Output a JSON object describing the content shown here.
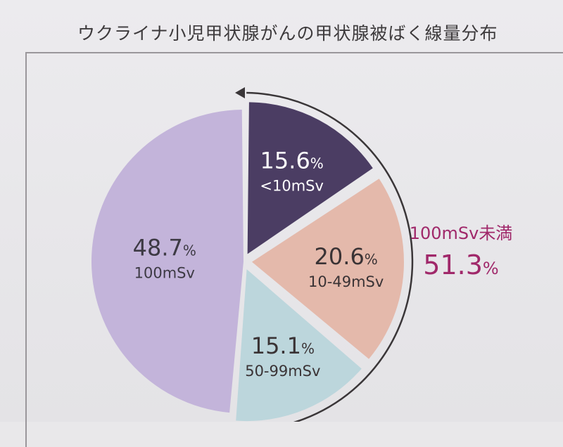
{
  "title": "ウクライナ小児甲状腺がんの甲状腺被ばく線量分布",
  "chart_data": {
    "type": "pie",
    "title": "ウクライナ小児甲状腺がんの甲状腺被ばく線量分布",
    "slices": [
      {
        "label": "<10mSv",
        "value": 15.6,
        "value_text": "15.6",
        "color": "#4b3d63",
        "text_color": "#ffffff",
        "exploded": true
      },
      {
        "label": "10-49mSv",
        "value": 20.6,
        "value_text": "20.6",
        "color": "#e4b9ab",
        "text_color": "#3a3335",
        "exploded": true
      },
      {
        "label": "50-99mSv",
        "value": 15.1,
        "value_text": "15.1",
        "color": "#bcd6dc",
        "text_color": "#3a3335",
        "exploded": true
      },
      {
        "label": "100mSv",
        "value": 48.7,
        "value_text": "48.7",
        "color": "#c3b4da",
        "text_color": "#3d3a44",
        "exploded": false
      }
    ],
    "percent_symbol": "%",
    "annotation": {
      "label": "100mSv未満",
      "value": "51.3",
      "symbol": "%",
      "color": "#a0286a"
    }
  }
}
